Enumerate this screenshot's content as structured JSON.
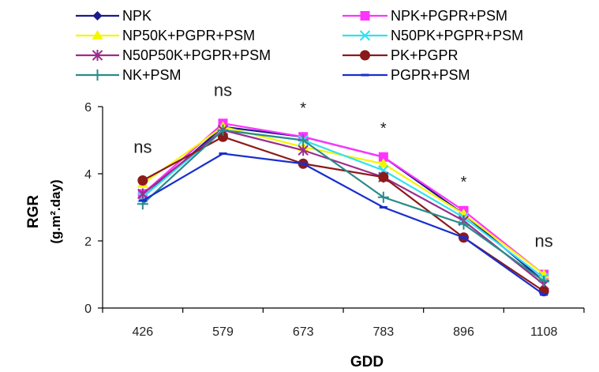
{
  "chart_data": {
    "type": "line",
    "title": "",
    "xlabel": "GDD",
    "ylabel": "RGR",
    "ylabel_unit": "(g.m².day)",
    "categories": [
      "426",
      "579",
      "673",
      "783",
      "896",
      "1108"
    ],
    "ylim": [
      0,
      6
    ],
    "yticks": [
      "0",
      "2",
      "4",
      "6"
    ],
    "grid": false,
    "legend_position": "top",
    "annotations": [
      "ns",
      "ns",
      "*",
      "*",
      "*",
      "ns"
    ],
    "series": [
      {
        "name": "NPK",
        "color": "#1a1a8c",
        "marker": "diamond",
        "values": [
          3.3,
          5.4,
          5.1,
          4.5,
          2.8,
          0.8
        ]
      },
      {
        "name": "NPK+PGPR+PSM",
        "color": "#ff33ff",
        "marker": "square",
        "values": [
          3.4,
          5.5,
          5.1,
          4.5,
          2.9,
          1.0
        ]
      },
      {
        "name": "NP50K+PGPR+PSM",
        "color": "#f5f500",
        "marker": "triangle",
        "values": [
          3.7,
          5.4,
          4.8,
          4.3,
          2.8,
          1.0
        ]
      },
      {
        "name": "N50PK+PGPR+PSM",
        "color": "#33e0f0",
        "marker": "x",
        "values": [
          3.3,
          5.3,
          5.0,
          4.1,
          2.7,
          0.9
        ]
      },
      {
        "name": "N50P50K+PGPR+PSM",
        "color": "#9b2d8c",
        "marker": "star",
        "values": [
          3.4,
          5.3,
          4.7,
          3.9,
          2.6,
          0.7
        ]
      },
      {
        "name": "PK+PGPR",
        "color": "#8b1a1a",
        "marker": "circle",
        "values": [
          3.8,
          5.1,
          4.3,
          3.9,
          2.1,
          0.5
        ]
      },
      {
        "name": "NK+PSM",
        "color": "#2b8a8a",
        "marker": "plus",
        "values": [
          3.1,
          5.3,
          5.0,
          3.3,
          2.5,
          0.8
        ]
      },
      {
        "name": "PGPR+PSM",
        "color": "#1a2ecc",
        "marker": "dash",
        "values": [
          3.2,
          4.6,
          4.3,
          3.0,
          2.1,
          0.4
        ]
      }
    ]
  }
}
